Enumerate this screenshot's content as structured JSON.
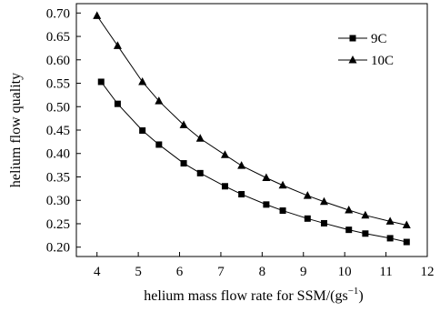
{
  "chart_data": {
    "type": "line",
    "title": "",
    "xlabel": "helium mass flow rate for SSM/(gs",
    "xlabel_sup": "−1",
    "xlabel_close": ")",
    "ylabel": "helium flow quality",
    "xlim": [
      3.5,
      12
    ],
    "ylim": [
      0.18,
      0.72
    ],
    "xticks": [
      "4",
      "5",
      "6",
      "7",
      "8",
      "9",
      "10",
      "11",
      "12"
    ],
    "yticks": [
      "0.20",
      "0.25",
      "0.30",
      "0.35",
      "0.40",
      "0.45",
      "0.50",
      "0.55",
      "0.60",
      "0.65",
      "0.70"
    ],
    "grid": false,
    "legend_position": "top-right",
    "series": [
      {
        "name": "9C",
        "marker": "square",
        "color": "#000000",
        "x": [
          4.1,
          4.5,
          5.1,
          5.5,
          6.1,
          6.5,
          7.1,
          7.5,
          8.1,
          8.5,
          9.1,
          9.5,
          10.1,
          10.5,
          11.1,
          11.5
        ],
        "values": [
          0.553,
          0.506,
          0.449,
          0.419,
          0.379,
          0.358,
          0.33,
          0.313,
          0.291,
          0.278,
          0.261,
          0.251,
          0.237,
          0.229,
          0.219,
          0.211
        ]
      },
      {
        "name": "10C",
        "marker": "triangle",
        "color": "#000000",
        "x": [
          4.0,
          4.5,
          5.1,
          5.5,
          6.1,
          6.5,
          7.1,
          7.5,
          8.1,
          8.5,
          9.1,
          9.5,
          10.1,
          10.5,
          11.1,
          11.5
        ],
        "values": [
          0.694,
          0.63,
          0.553,
          0.512,
          0.461,
          0.432,
          0.397,
          0.374,
          0.348,
          0.332,
          0.31,
          0.297,
          0.279,
          0.268,
          0.255,
          0.247
        ]
      }
    ]
  }
}
